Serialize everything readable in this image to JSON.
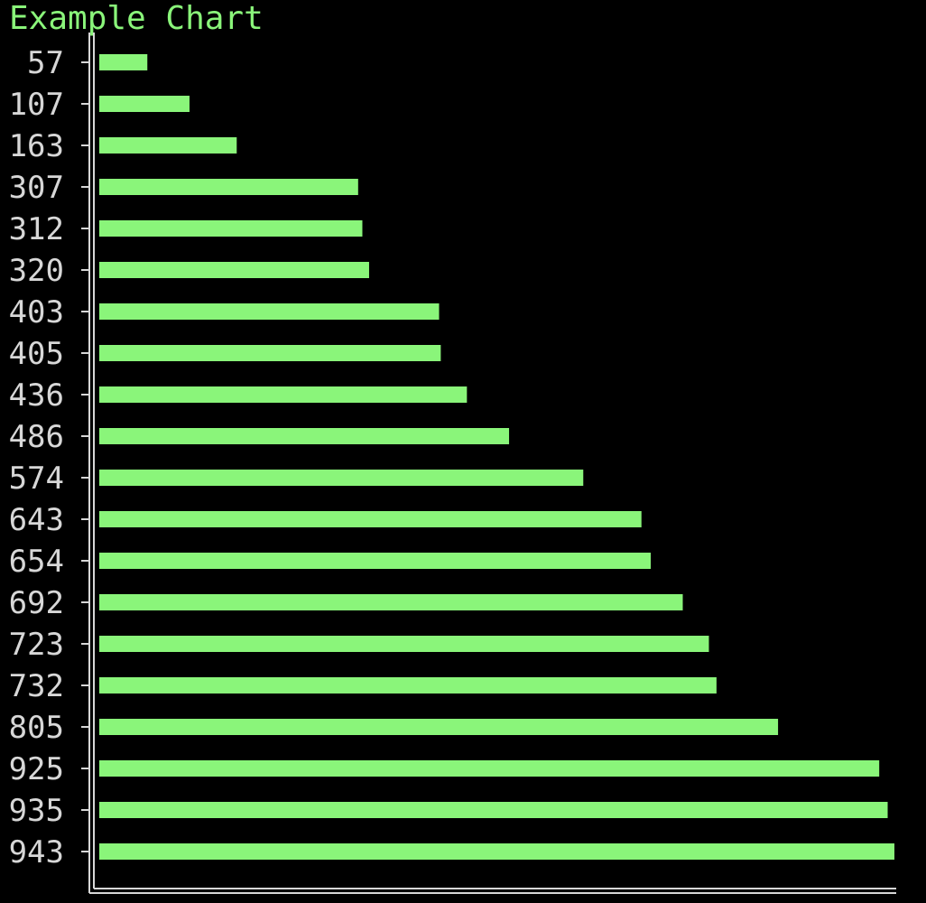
{
  "chart_data": {
    "type": "bar",
    "orientation": "horizontal",
    "title": "Example Chart",
    "categories": [
      "57",
      "107",
      "163",
      "307",
      "312",
      "320",
      "403",
      "405",
      "436",
      "486",
      "574",
      "643",
      "654",
      "692",
      "723",
      "732",
      "805",
      "925",
      "935",
      "943"
    ],
    "values": [
      57,
      107,
      163,
      307,
      312,
      320,
      403,
      405,
      436,
      486,
      574,
      643,
      654,
      692,
      723,
      732,
      805,
      925,
      935,
      943
    ],
    "colors": {
      "bar": "#8af57a",
      "title": "#8af57a",
      "label": "#d7d7d7",
      "axis": "#d7d7d7",
      "background": "#000000"
    }
  }
}
